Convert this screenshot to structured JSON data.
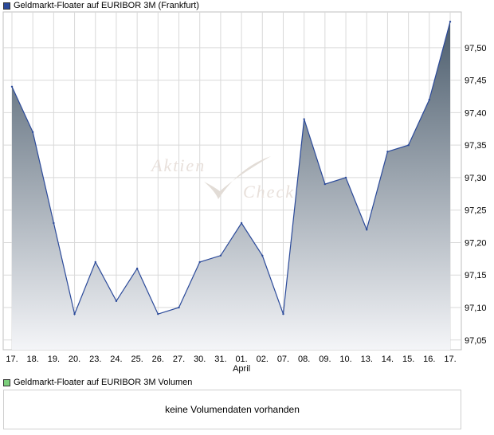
{
  "price_legend": {
    "label": "Geldmarkt-Floater auf EURIBOR 3M (Frankfurt)",
    "color": "#2b4a9a"
  },
  "volume_legend": {
    "label": "Geldmarkt-Floater auf EURIBOR 3M Volumen",
    "color": "#7ccf7c"
  },
  "volume_panel": {
    "message": "keine Volumendaten vorhanden"
  },
  "watermark": {
    "line1": "Aktien",
    "line2": "Check"
  },
  "colors": {
    "line": "#2b4a9a",
    "area_top": "#4c5d6d",
    "area_bottom": "#f4f5f8",
    "grid": "#d9d9d9",
    "frame": "#bfbfbf"
  },
  "chart_data": {
    "type": "area",
    "x": [
      "17.",
      "18.",
      "19.",
      "20.",
      "23.",
      "24.",
      "25.",
      "26.",
      "27.",
      "30.",
      "31.",
      "01.",
      "02.",
      "07.",
      "08.",
      "09.",
      "10.",
      "13.",
      "14.",
      "15.",
      "16.",
      "17."
    ],
    "month_label": {
      "index": 11,
      "text": "April"
    },
    "series": [
      {
        "values": [
          97.44,
          97.37,
          97.23,
          97.09,
          97.17,
          97.11,
          97.16,
          97.09,
          97.1,
          97.17,
          97.18,
          97.23,
          97.18,
          97.09,
          97.39,
          97.29,
          97.3,
          97.22,
          97.34,
          97.35,
          97.42,
          97.54
        ]
      }
    ],
    "y_ticks": [
      "97,05",
      "97,10",
      "97,15",
      "97,20",
      "97,25",
      "97,30",
      "97,35",
      "97,40",
      "97,45",
      "97,50"
    ],
    "y_tick_values": [
      97.05,
      97.1,
      97.15,
      97.2,
      97.25,
      97.3,
      97.35,
      97.4,
      97.45,
      97.5
    ],
    "ylim": [
      97.035,
      97.555
    ],
    "grid": true,
    "y_axis_side": "right"
  }
}
